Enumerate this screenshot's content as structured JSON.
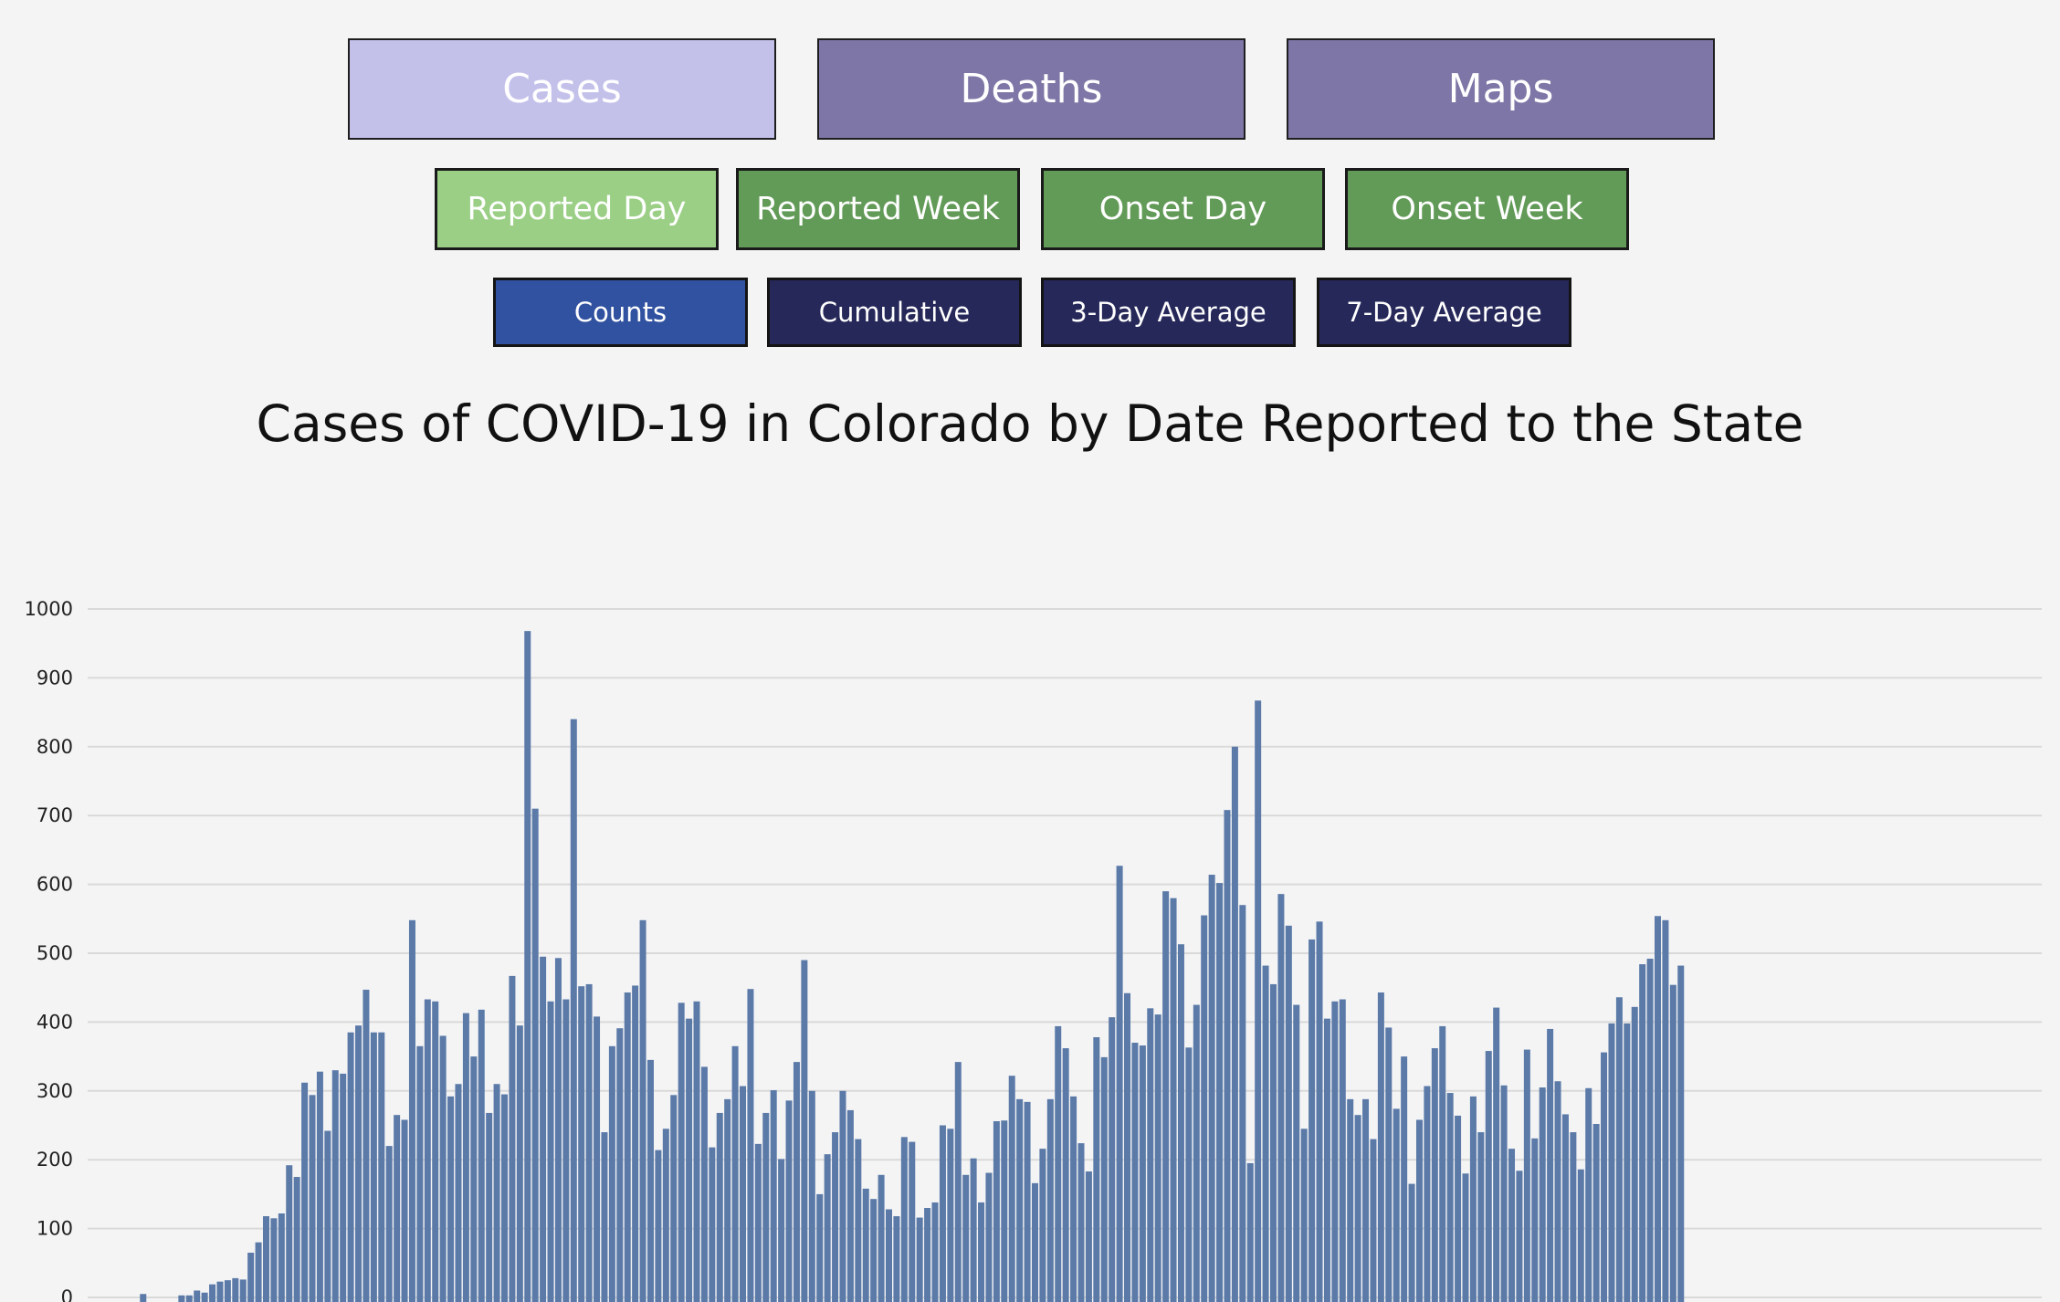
{
  "nav": {
    "tabs": [
      {
        "label": "Cases",
        "active": true
      },
      {
        "label": "Deaths",
        "active": false
      },
      {
        "label": "Maps",
        "active": false
      }
    ],
    "views": [
      {
        "label": "Reported Day",
        "active": true
      },
      {
        "label": "Reported Week",
        "active": false
      },
      {
        "label": "Onset Day",
        "active": false
      },
      {
        "label": "Onset Week",
        "active": false
      }
    ],
    "measures": [
      {
        "label": "Counts",
        "active": true
      },
      {
        "label": "Cumulative",
        "active": false
      },
      {
        "label": "3-Day Average",
        "active": false
      },
      {
        "label": "7-Day Average",
        "active": false
      }
    ]
  },
  "colors": {
    "tab_active": "#c3c1ea",
    "tab_inactive": "#7e76a6",
    "view_active": "#9bcf86",
    "view_inactive": "#629a57",
    "measure_active": "#3152a0",
    "measure_inactive": "#262859",
    "bar": "#5b7aa8",
    "grid": "#d9d9d9"
  },
  "chart_data": {
    "type": "bar",
    "title": "Cases of COVID-19 in Colorado by Date Reported to the State",
    "xlabel": "",
    "ylabel": "",
    "ylim": [
      0,
      1000
    ],
    "yticks": [
      0,
      100,
      200,
      300,
      400,
      500,
      600,
      700,
      800,
      900,
      1000
    ],
    "grid": true,
    "values": [
      0,
      0,
      0,
      5,
      0,
      0,
      0,
      0,
      3,
      3,
      10,
      7,
      19,
      23,
      25,
      28,
      26,
      65,
      80,
      118,
      115,
      122,
      192,
      175,
      312,
      294,
      328,
      242,
      330,
      325,
      385,
      395,
      447,
      385,
      385,
      220,
      265,
      258,
      548,
      365,
      433,
      430,
      380,
      292,
      310,
      413,
      350,
      418,
      268,
      310,
      295,
      467,
      395,
      968,
      710,
      495,
      430,
      493,
      433,
      840,
      452,
      455,
      408,
      240,
      365,
      391,
      443,
      453,
      548,
      345,
      214,
      245,
      294,
      428,
      405,
      430,
      335,
      218,
      268,
      288,
      365,
      307,
      448,
      223,
      268,
      301,
      201,
      286,
      342,
      490,
      300,
      150,
      208,
      240,
      300,
      272,
      230,
      158,
      143,
      178,
      128,
      118,
      233,
      226,
      116,
      130,
      138,
      250,
      245,
      342,
      178,
      202,
      138,
      181,
      256,
      257,
      322,
      288,
      284,
      166,
      216,
      288,
      394,
      362,
      292,
      224,
      183,
      378,
      349,
      407,
      627,
      442,
      370,
      366,
      420,
      411,
      590,
      580,
      513,
      363,
      425,
      555,
      614,
      602,
      708,
      800,
      570,
      195,
      867,
      482,
      455,
      586,
      540,
      425,
      245,
      520,
      546,
      405,
      430,
      433,
      288,
      265,
      288,
      230,
      443,
      392,
      274,
      350,
      165,
      258,
      307,
      362,
      394,
      297,
      264,
      180,
      292,
      240,
      358,
      421,
      308,
      216,
      184,
      360,
      231,
      305,
      390,
      314,
      266,
      240,
      186,
      304,
      252,
      356,
      398,
      436,
      398,
      422,
      484,
      492,
      554,
      548,
      454,
      482
    ]
  }
}
